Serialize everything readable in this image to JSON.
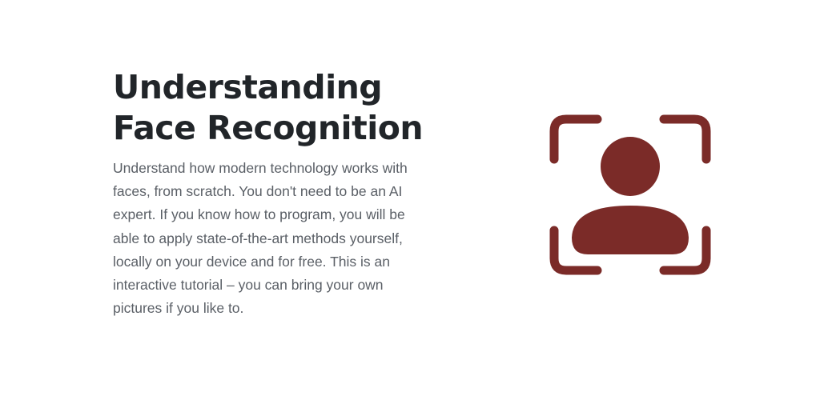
{
  "hero": {
    "title_line1": "Understanding",
    "title_line2": "Face Recognition",
    "description": "Understand how modern technology works with faces, from scratch. You don't need to be an AI expert. If you know how to program, you will be able to apply state-of-the-art methods yourself, locally on your device and for free. This is an interactive tutorial – you can bring your own pictures if you like to.",
    "icon": "face-recognition-icon"
  },
  "colors": {
    "heading": "#212529",
    "body_text": "#5a5f66",
    "icon": "#7b2b28",
    "background": "#ffffff"
  }
}
